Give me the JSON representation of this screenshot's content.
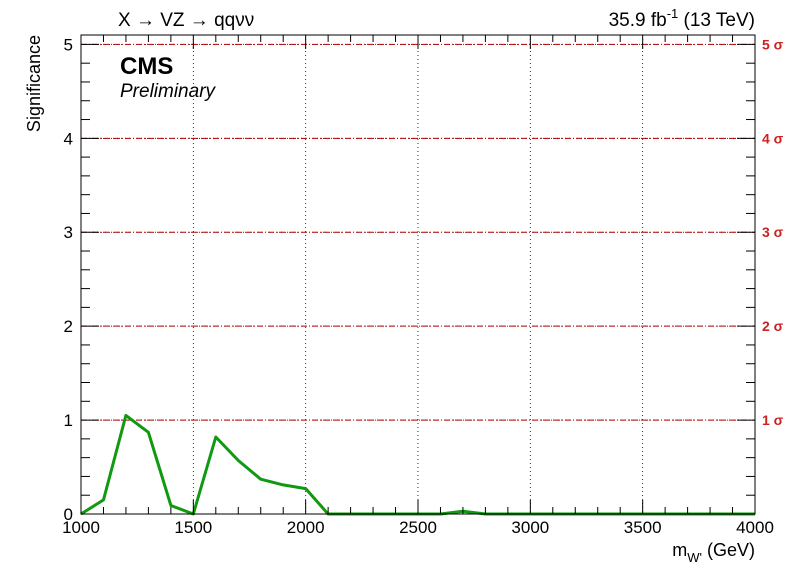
{
  "chart_data": {
    "type": "line",
    "title_left": "X → VZ → qqνν",
    "lumi": "35.9 fb",
    "lumi_sup": "-1",
    "energy": "(13 TeV)",
    "experiment": "CMS",
    "status": "Preliminary",
    "xlabel": "m",
    "xlabel_sub": "W'",
    "xlabel_unit": "(GeV)",
    "ylabel": "Significance",
    "xlim": [
      1000,
      4000
    ],
    "ylim": [
      0,
      5.1
    ],
    "x_ticks": [
      1000,
      1500,
      2000,
      2500,
      3000,
      3500,
      4000
    ],
    "x_tick_labels": [
      "1000",
      "1500",
      "2000",
      "2500",
      "3000",
      "3500",
      "4000"
    ],
    "y_ticks": [
      0,
      1,
      2,
      3,
      4,
      5
    ],
    "y_tick_labels": [
      "0",
      "1",
      "2",
      "3",
      "4",
      "5"
    ],
    "grid": true,
    "sigma_lines": [
      1,
      2,
      3,
      4,
      5
    ],
    "sigma_labels": [
      "1 σ",
      "2 σ",
      "3 σ",
      "4 σ",
      "5 σ"
    ],
    "sigma_color": "#aa0000",
    "series": [
      {
        "color": "#119911",
        "x": [
          1000,
          1100,
          1200,
          1300,
          1400,
          1500,
          1600,
          1700,
          1800,
          1900,
          2000,
          2100,
          2200,
          2300,
          2400,
          2500,
          2600,
          2700,
          2800,
          2900,
          3000,
          3100,
          3200,
          3300,
          3400,
          3500,
          3600,
          3700,
          3800,
          3900,
          4000
        ],
        "y": [
          0.0,
          0.15,
          1.05,
          0.87,
          0.09,
          0.0,
          0.82,
          0.57,
          0.37,
          0.31,
          0.27,
          0.0,
          0.0,
          0.0,
          0.0,
          0.0,
          0.0,
          0.03,
          0.0,
          0.0,
          0.0,
          0.0,
          0.0,
          0.0,
          0.0,
          0.0,
          0.0,
          0.0,
          0.0,
          0.0,
          0.0
        ]
      }
    ]
  }
}
